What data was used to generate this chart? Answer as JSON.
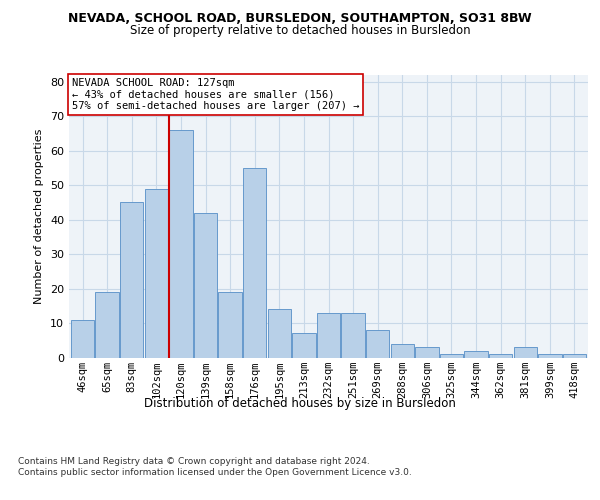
{
  "title1": "NEVADA, SCHOOL ROAD, BURSLEDON, SOUTHAMPTON, SO31 8BW",
  "title2": "Size of property relative to detached houses in Bursledon",
  "xlabel": "Distribution of detached houses by size in Bursledon",
  "ylabel": "Number of detached properties",
  "categories": [
    "46sqm",
    "65sqm",
    "83sqm",
    "102sqm",
    "120sqm",
    "139sqm",
    "158sqm",
    "176sqm",
    "195sqm",
    "213sqm",
    "232sqm",
    "251sqm",
    "269sqm",
    "288sqm",
    "306sqm",
    "325sqm",
    "344sqm",
    "362sqm",
    "381sqm",
    "399sqm",
    "418sqm"
  ],
  "values": [
    11,
    19,
    45,
    49,
    66,
    42,
    19,
    55,
    14,
    7,
    13,
    13,
    8,
    4,
    3,
    1,
    2,
    1,
    3,
    1,
    1
  ],
  "bar_color": "#b8d0e8",
  "bar_edge_color": "#6699cc",
  "grid_color": "#c8d8e8",
  "bg_color": "#eef3f8",
  "vline_x": 3.5,
  "vline_color": "#cc0000",
  "annotation_text": "NEVADA SCHOOL ROAD: 127sqm\n← 43% of detached houses are smaller (156)\n57% of semi-detached houses are larger (207) →",
  "annotation_box_color": "#ffffff",
  "annotation_box_edge": "#cc0000",
  "footer": "Contains HM Land Registry data © Crown copyright and database right 2024.\nContains public sector information licensed under the Open Government Licence v3.0.",
  "ylim": [
    0,
    82
  ],
  "yticks": [
    0,
    10,
    20,
    30,
    40,
    50,
    60,
    70,
    80
  ]
}
